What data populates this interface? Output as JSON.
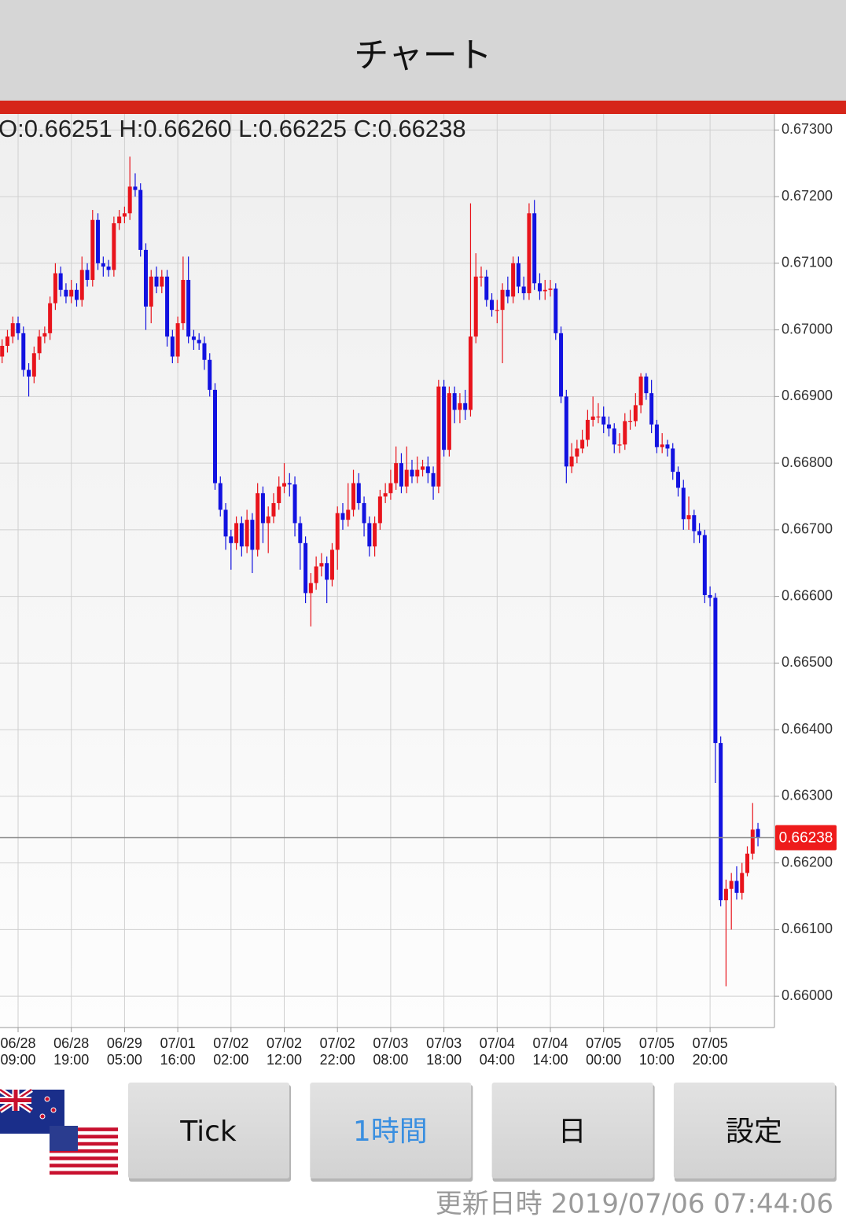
{
  "header": {
    "title": "チャート"
  },
  "chart_data": {
    "type": "candlestick",
    "ohlc_label": "O:0.66251 H:0.66260 L:0.66225 C:0.66238",
    "up_color": "#e8141c",
    "down_color": "#1212e0",
    "ylim": [
      0.65953,
      0.67324
    ],
    "yticks": [
      {
        "value": 0.673,
        "label": "0.67300"
      },
      {
        "value": 0.672,
        "label": "0.67200"
      },
      {
        "value": 0.671,
        "label": "0.67100"
      },
      {
        "value": 0.67,
        "label": "0.67000"
      },
      {
        "value": 0.669,
        "label": "0.66900"
      },
      {
        "value": 0.668,
        "label": "0.66800"
      },
      {
        "value": 0.667,
        "label": "0.66700"
      },
      {
        "value": 0.666,
        "label": "0.66600"
      },
      {
        "value": 0.665,
        "label": "0.66500"
      },
      {
        "value": 0.664,
        "label": "0.66400"
      },
      {
        "value": 0.663,
        "label": "0.66300"
      },
      {
        "value": 0.662,
        "label": "0.66200"
      },
      {
        "value": 0.661,
        "label": "0.66100"
      },
      {
        "value": 0.66,
        "label": "0.66000"
      }
    ],
    "grid": true,
    "last_price": {
      "value": 0.66238,
      "label": "0.66238"
    },
    "categories": [
      null,
      null,
      null,
      [
        "06/28",
        "09:00"
      ],
      null,
      null,
      null,
      null,
      null,
      null,
      null,
      null,
      null,
      [
        "06/28",
        "19:00"
      ],
      null,
      null,
      null,
      null,
      null,
      null,
      null,
      null,
      null,
      [
        "06/29",
        "05:00"
      ],
      null,
      null,
      null,
      null,
      null,
      null,
      null,
      null,
      null,
      [
        "07/01",
        "16:00"
      ],
      null,
      null,
      null,
      null,
      null,
      null,
      null,
      null,
      null,
      [
        "07/02",
        "02:00"
      ],
      null,
      null,
      null,
      null,
      null,
      null,
      null,
      null,
      null,
      [
        "07/02",
        "12:00"
      ],
      null,
      null,
      null,
      null,
      null,
      null,
      null,
      null,
      null,
      [
        "07/02",
        "22:00"
      ],
      null,
      null,
      null,
      null,
      null,
      null,
      null,
      null,
      null,
      [
        "07/03",
        "08:00"
      ],
      null,
      null,
      null,
      null,
      null,
      null,
      null,
      null,
      null,
      [
        "07/03",
        "18:00"
      ],
      null,
      null,
      null,
      null,
      null,
      null,
      null,
      null,
      null,
      [
        "07/04",
        "04:00"
      ],
      null,
      null,
      null,
      null,
      null,
      null,
      null,
      null,
      null,
      [
        "07/04",
        "14:00"
      ],
      null,
      null,
      null,
      null,
      null,
      null,
      null,
      null,
      null,
      [
        "07/05",
        "00:00"
      ],
      null,
      null,
      null,
      null,
      null,
      null,
      null,
      null,
      null,
      [
        "07/05",
        "10:00"
      ],
      null,
      null,
      null,
      null,
      null,
      null,
      null,
      null,
      null,
      [
        "07/05",
        "20:00"
      ],
      null,
      null,
      null,
      null,
      null,
      null,
      null,
      null,
      null
    ],
    "open": [
      0.6696,
      0.66976,
      0.6699,
      0.6701,
      0.66995,
      0.6694,
      0.6693,
      0.66965,
      0.6699,
      0.66995,
      0.6704,
      0.67085,
      0.6706,
      0.6705,
      0.6706,
      0.67045,
      0.6709,
      0.67075,
      0.67165,
      0.671,
      0.67095,
      0.6709,
      0.6716,
      0.6717,
      0.67175,
      0.67215,
      0.6721,
      0.6712,
      0.67035,
      0.6708,
      0.67065,
      0.6708,
      0.6699,
      0.6696,
      0.6701,
      0.67075,
      0.6699,
      0.66985,
      0.6698,
      0.66955,
      0.6691,
      0.6677,
      0.6673,
      0.6669,
      0.6668,
      0.6671,
      0.66675,
      0.66715,
      0.6667,
      0.66755,
      0.6671,
      0.6672,
      0.6674,
      0.66765,
      0.6677,
      0.66768,
      0.6671,
      0.6668,
      0.66605,
      0.6662,
      0.66645,
      0.6665,
      0.66625,
      0.6667,
      0.66725,
      0.66715,
      0.6673,
      0.6677,
      0.6674,
      0.6671,
      0.66675,
      0.6671,
      0.6675,
      0.66755,
      0.6677,
      0.668,
      0.66765,
      0.6679,
      0.6678,
      0.6679,
      0.66795,
      0.66785,
      0.66765,
      0.66915,
      0.6682,
      0.66905,
      0.6688,
      0.6689,
      0.6688,
      0.6699,
      0.6708,
      0.6708,
      0.67045,
      0.6703,
      0.6703,
      0.6706,
      0.6705,
      0.671,
      0.67065,
      0.67055,
      0.67175,
      0.6707,
      0.67058,
      0.6706,
      0.67062,
      0.66995,
      0.669,
      0.66795,
      0.6681,
      0.66822,
      0.66835,
      0.66865,
      0.6687,
      0.6687,
      0.66858,
      0.66852,
      0.66828,
      0.66828,
      0.66863,
      0.66863,
      0.66887,
      0.6693,
      0.66905,
      0.66858,
      0.66824,
      0.66828,
      0.66822,
      0.66787,
      0.66763,
      0.66716,
      0.66722,
      0.66698,
      0.66692,
      0.66602,
      0.66598,
      0.6638,
      0.66144,
      0.66161,
      0.66173,
      0.66155,
      0.66185,
      0.66214,
      0.66251
    ],
    "high": [
      0.66986,
      0.67,
      0.6702,
      0.6702,
      0.67005,
      0.6695,
      0.66975,
      0.67,
      0.67005,
      0.6705,
      0.671,
      0.67095,
      0.6707,
      0.67075,
      0.6707,
      0.6711,
      0.671,
      0.6718,
      0.67175,
      0.6711,
      0.67105,
      0.6717,
      0.6718,
      0.67185,
      0.6726,
      0.67235,
      0.6722,
      0.6713,
      0.6709,
      0.67095,
      0.6709,
      0.6709,
      0.67,
      0.6702,
      0.6711,
      0.6711,
      0.67,
      0.66995,
      0.6699,
      0.66965,
      0.6692,
      0.6678,
      0.6674,
      0.667,
      0.6672,
      0.6672,
      0.6673,
      0.66725,
      0.6677,
      0.66765,
      0.66735,
      0.66755,
      0.6678,
      0.668,
      0.66785,
      0.6678,
      0.6672,
      0.6669,
      0.66635,
      0.6666,
      0.66665,
      0.6666,
      0.6668,
      0.66735,
      0.6674,
      0.6677,
      0.6679,
      0.66785,
      0.6675,
      0.6672,
      0.6672,
      0.6676,
      0.6677,
      0.6679,
      0.66825,
      0.66815,
      0.66825,
      0.66805,
      0.6681,
      0.66805,
      0.6681,
      0.66795,
      0.66925,
      0.66925,
      0.66915,
      0.66915,
      0.66905,
      0.6691,
      0.6719,
      0.67115,
      0.67095,
      0.6709,
      0.67055,
      0.67045,
      0.6707,
      0.6708,
      0.6711,
      0.6711,
      0.6708,
      0.6719,
      0.67195,
      0.67085,
      0.67075,
      0.67075,
      0.6707,
      0.67005,
      0.6691,
      0.6683,
      0.66835,
      0.6685,
      0.6688,
      0.669,
      0.6689,
      0.66885,
      0.6687,
      0.6686,
      0.66845,
      0.66875,
      0.6688,
      0.66905,
      0.66935,
      0.66935,
      0.66925,
      0.66865,
      0.66845,
      0.66835,
      0.6683,
      0.66795,
      0.66775,
      0.6675,
      0.6673,
      0.6671,
      0.667,
      0.66615,
      0.66605,
      0.6639,
      0.66175,
      0.66185,
      0.66195,
      0.662,
      0.66225,
      0.6629,
      0.6626
    ],
    "low": [
      0.6695,
      0.66966,
      0.6698,
      0.66985,
      0.6693,
      0.669,
      0.6692,
      0.66955,
      0.6698,
      0.66985,
      0.6703,
      0.6705,
      0.6704,
      0.6704,
      0.67035,
      0.67035,
      0.67065,
      0.67065,
      0.6709,
      0.6708,
      0.6708,
      0.6708,
      0.6715,
      0.6716,
      0.67165,
      0.672,
      0.6711,
      0.67,
      0.6701,
      0.67055,
      0.67055,
      0.66975,
      0.6695,
      0.6695,
      0.67,
      0.6698,
      0.6697,
      0.6697,
      0.6694,
      0.669,
      0.6676,
      0.6672,
      0.6667,
      0.6664,
      0.6667,
      0.6666,
      0.66665,
      0.66635,
      0.6666,
      0.6668,
      0.66665,
      0.6671,
      0.6673,
      0.66755,
      0.6675,
      0.6669,
      0.6664,
      0.6659,
      0.66555,
      0.6661,
      0.6663,
      0.6659,
      0.66615,
      0.6664,
      0.667,
      0.66705,
      0.6672,
      0.6673,
      0.6669,
      0.6666,
      0.6666,
      0.667,
      0.6674,
      0.66745,
      0.6676,
      0.66755,
      0.66755,
      0.6677,
      0.6677,
      0.6678,
      0.6677,
      0.66745,
      0.66755,
      0.6681,
      0.6681,
      0.6686,
      0.6686,
      0.66865,
      0.6687,
      0.6698,
      0.67065,
      0.67035,
      0.6702,
      0.6701,
      0.6695,
      0.6704,
      0.6704,
      0.67055,
      0.67045,
      0.67045,
      0.6706,
      0.67045,
      0.67045,
      0.6705,
      0.66985,
      0.6689,
      0.6677,
      0.66785,
      0.668,
      0.66815,
      0.66825,
      0.66855,
      0.6686,
      0.66845,
      0.6684,
      0.66815,
      0.66815,
      0.6682,
      0.6685,
      0.66855,
      0.66875,
      0.66895,
      0.66845,
      0.66815,
      0.66815,
      0.6681,
      0.66775,
      0.6675,
      0.667,
      0.667,
      0.6668,
      0.6668,
      0.6659,
      0.66585,
      0.6632,
      0.66135,
      0.66015,
      0.661,
      0.66145,
      0.66145,
      0.6618,
      0.66205,
      0.66225
    ],
    "close": [
      0.66976,
      0.6699,
      0.6701,
      0.66995,
      0.6694,
      0.6693,
      0.66965,
      0.6699,
      0.66995,
      0.6704,
      0.67085,
      0.6706,
      0.6705,
      0.6706,
      0.67045,
      0.6709,
      0.67075,
      0.67165,
      0.671,
      0.67095,
      0.6709,
      0.6716,
      0.6717,
      0.67175,
      0.67215,
      0.6721,
      0.6712,
      0.67035,
      0.6708,
      0.67065,
      0.6708,
      0.6699,
      0.6696,
      0.6701,
      0.67075,
      0.6699,
      0.66985,
      0.6698,
      0.66955,
      0.6691,
      0.6677,
      0.6673,
      0.6669,
      0.6668,
      0.6671,
      0.66675,
      0.66715,
      0.6667,
      0.66755,
      0.6671,
      0.6672,
      0.6674,
      0.66765,
      0.6677,
      0.66768,
      0.6671,
      0.6668,
      0.66605,
      0.6662,
      0.66645,
      0.6665,
      0.66625,
      0.6667,
      0.66725,
      0.66715,
      0.6673,
      0.6677,
      0.6674,
      0.6671,
      0.66675,
      0.6671,
      0.6675,
      0.66755,
      0.6677,
      0.668,
      0.66765,
      0.6679,
      0.6678,
      0.6679,
      0.66795,
      0.66785,
      0.66765,
      0.66915,
      0.6682,
      0.66905,
      0.6688,
      0.6689,
      0.6688,
      0.6699,
      0.6708,
      0.6708,
      0.67045,
      0.6703,
      0.6703,
      0.6706,
      0.6705,
      0.671,
      0.67065,
      0.67055,
      0.67175,
      0.6707,
      0.67058,
      0.6706,
      0.67062,
      0.66995,
      0.669,
      0.66795,
      0.6681,
      0.66822,
      0.66835,
      0.66865,
      0.6687,
      0.6687,
      0.66858,
      0.66852,
      0.66828,
      0.66828,
      0.66863,
      0.66863,
      0.66887,
      0.6693,
      0.66905,
      0.66858,
      0.66824,
      0.66828,
      0.66822,
      0.66787,
      0.66763,
      0.66716,
      0.66722,
      0.66698,
      0.66692,
      0.66602,
      0.66598,
      0.6638,
      0.66144,
      0.66161,
      0.66173,
      0.66155,
      0.66185,
      0.66214,
      0.6625,
      0.66238
    ]
  },
  "buttons": [
    {
      "label": "Tick"
    },
    {
      "label": "1時間",
      "selected": true
    },
    {
      "label": "日"
    },
    {
      "label": "設定"
    }
  ],
  "footer": "更新日時 2019/07/06 07:44:06"
}
